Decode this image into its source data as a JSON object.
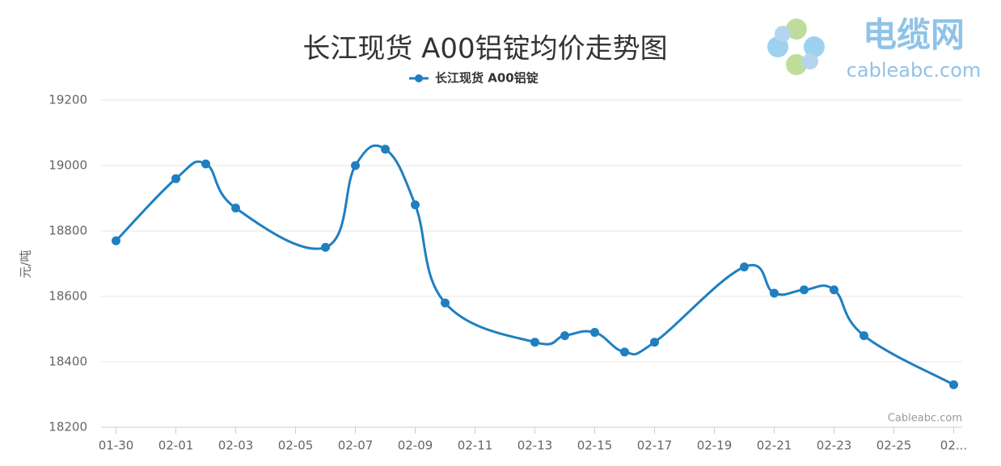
{
  "chart_data": {
    "type": "line",
    "title": "长江现货 A00铝锭均价走势图",
    "y_label": "元/吨",
    "credits": "Cableabc.com",
    "categories": [
      "01-30",
      null,
      "02-01",
      null,
      "02-03",
      null,
      "02-05",
      null,
      "02-07",
      null,
      "02-09",
      null,
      "02-11",
      null,
      "02-13",
      null,
      "02-15",
      null,
      "02-17",
      null,
      "02-19",
      null,
      "02-21",
      null,
      "02-23",
      null,
      "02-25",
      null,
      "02..."
    ],
    "series": [
      {
        "name": "长江现货 A00铝锭",
        "color": "#1f7fc1",
        "values": [
          18770,
          null,
          18960,
          19005,
          18870,
          null,
          null,
          18750,
          19000,
          19050,
          18880,
          18580,
          null,
          null,
          18460,
          18480,
          18490,
          18430,
          18460,
          null,
          null,
          18690,
          18610,
          18620,
          18620,
          18480,
          null,
          null,
          18330
        ]
      }
    ],
    "ylim": [
      18200,
      19200
    ],
    "yticks": [
      18200,
      18400,
      18600,
      18800,
      19000,
      19200
    ],
    "grid": true,
    "smooth": true,
    "connect_nulls": true
  },
  "logo": {
    "name": "电缆网",
    "url": "cableabc.com"
  }
}
